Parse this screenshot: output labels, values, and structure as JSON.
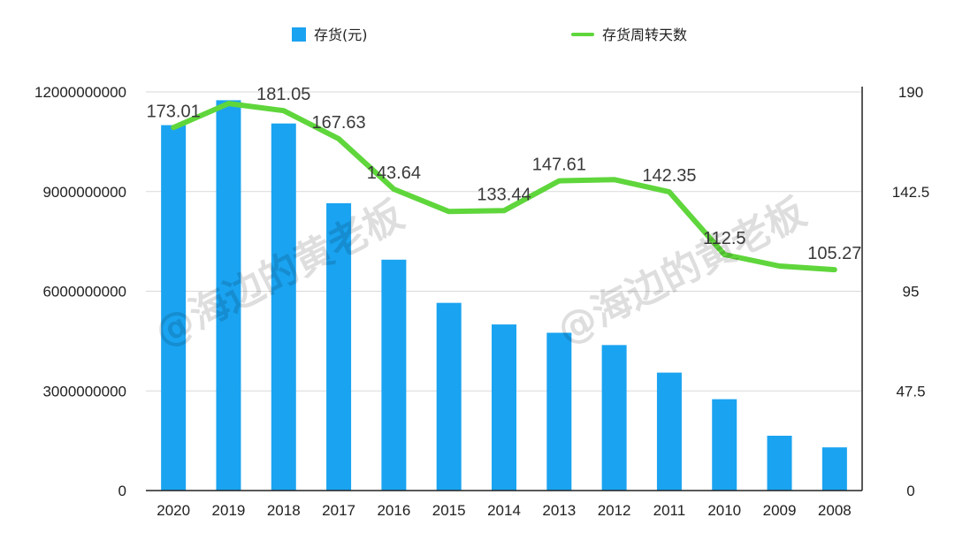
{
  "colors": {
    "bar": "#1aa3f0",
    "line": "#5fd63b",
    "grid": "#d9d9d9",
    "axis": "#222222",
    "text": "#222222"
  },
  "legend": {
    "bar_label": "存货(元)",
    "line_label": "存货周转天数"
  },
  "watermark": {
    "text_1": "@海边的黄老板",
    "text_2": "@海边的黄老板"
  },
  "chart_data": {
    "type": "bar",
    "categories": [
      "2020",
      "2019",
      "2018",
      "2017",
      "2016",
      "2015",
      "2014",
      "2013",
      "2012",
      "2011",
      "2010",
      "2009",
      "2008"
    ],
    "series": [
      {
        "name": "存货(元)",
        "type": "bar",
        "axis": "left",
        "values": [
          11000000000,
          11750000000,
          11050000000,
          8650000000,
          6950000000,
          5650000000,
          5000000000,
          4750000000,
          4380000000,
          3550000000,
          2750000000,
          1650000000,
          1300000000
        ]
      },
      {
        "name": "存货周转天数",
        "type": "line",
        "axis": "right",
        "values": [
          173.01,
          184.5,
          181.05,
          167.63,
          143.64,
          133.0,
          133.44,
          147.61,
          148.2,
          142.35,
          112.5,
          107.0,
          105.27
        ]
      }
    ],
    "data_labels": [
      {
        "category": "2020",
        "text": "173.01",
        "value": 173.01
      },
      {
        "category": "2018",
        "text": "181.05",
        "value": 181.05
      },
      {
        "category": "2017",
        "text": "167.63",
        "value": 167.63
      },
      {
        "category": "2016",
        "text": "143.64",
        "value": 143.64
      },
      {
        "category": "2014",
        "text": "133.44",
        "value": 133.44
      },
      {
        "category": "2013",
        "text": "147.61",
        "value": 147.61
      },
      {
        "category": "2011",
        "text": "142.35",
        "value": 142.35
      },
      {
        "category": "2010",
        "text": "112.5",
        "value": 112.5
      },
      {
        "category": "2008",
        "text": "105.27",
        "value": 105.27
      }
    ],
    "y_left": {
      "min": 0,
      "max": 12000000000,
      "ticks": [
        0,
        3000000000,
        6000000000,
        9000000000,
        12000000000
      ],
      "tick_labels": [
        "0",
        "3000000000",
        "6000000000",
        "9000000000",
        "12000000000"
      ]
    },
    "y_right": {
      "min": 0,
      "max": 190,
      "ticks": [
        0,
        47.5,
        95,
        142.5,
        190
      ],
      "tick_labels": [
        "0",
        "47.5",
        "95",
        "142.5",
        "190"
      ]
    },
    "title": "",
    "xlabel": "",
    "ylabel": "",
    "grid": true,
    "legend_position": "top-center"
  }
}
